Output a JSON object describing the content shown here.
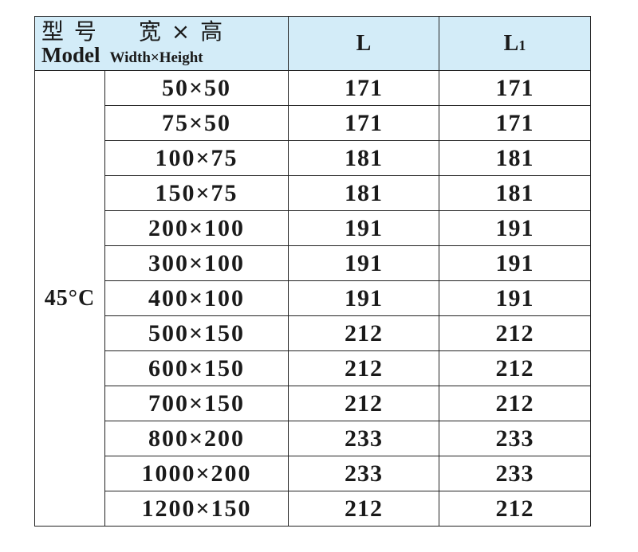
{
  "header": {
    "model_zh": "型 号",
    "size_zh": "宽 × 高",
    "model_en": "Model",
    "size_en": "Width×Height",
    "col_L": "L",
    "col_L1_main": "L",
    "col_L1_sub": "1"
  },
  "group_label": "45°C",
  "rows": [
    {
      "size": "50×50",
      "L": "171",
      "L1": "171"
    },
    {
      "size": "75×50",
      "L": "171",
      "L1": "171"
    },
    {
      "size": "100×75",
      "L": "181",
      "L1": "181"
    },
    {
      "size": "150×75",
      "L": "181",
      "L1": "181"
    },
    {
      "size": "200×100",
      "L": "191",
      "L1": "191"
    },
    {
      "size": "300×100",
      "L": "191",
      "L1": "191"
    },
    {
      "size": "400×100",
      "L": "191",
      "L1": "191"
    },
    {
      "size": "500×150",
      "L": "212",
      "L1": "212"
    },
    {
      "size": "600×150",
      "L": "212",
      "L1": "212"
    },
    {
      "size": "700×150",
      "L": "212",
      "L1": "212"
    },
    {
      "size": "800×200",
      "L": "233",
      "L1": "233"
    },
    {
      "size": "1000×200",
      "L": "233",
      "L1": "233"
    },
    {
      "size": "1200×150",
      "L": "212",
      "L1": "212"
    }
  ],
  "colors": {
    "header_bg": "#d3ecf8",
    "border": "#222222"
  }
}
